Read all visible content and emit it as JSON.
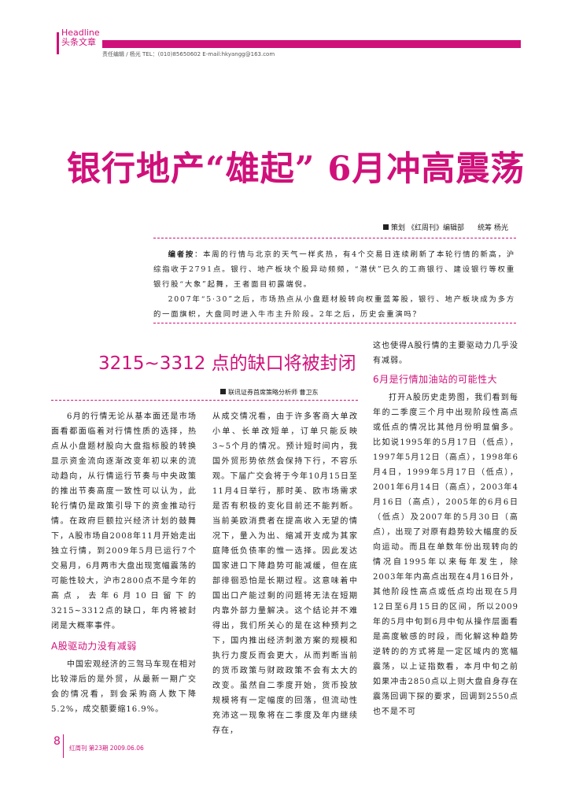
{
  "header": {
    "section_en": "Headline",
    "section_cn": "头条文章",
    "editor_line": "责任编辑 / 杨光 TEL：(010)85650602 E-mail:hkyangg@163.com"
  },
  "article": {
    "title": "银行地产“雄起” 6月冲高震荡",
    "byline_label": "策划",
    "byline_text": "《红周刊》编辑部",
    "byline_roles": "统筹   杨光",
    "note_label": "编者按",
    "note_p1": "：本周的行情与北京的天气一样炙热，有4个交易日连续刷新了本轮行情的新高，沪综指收于2791点。银行、地产板块个股异动频频，“潜伏”已久的工商银行、建设银行等权重银行股“大象”起舞，王者面目初露端倪。",
    "note_p2": "2007年“5·30”之后，市场热点从小盘题材股转向权重蓝筹股，银行、地产板块成为多方的一面旗帜，大盘同时进入牛市主升阶段。2年之后，历史会重演吗？"
  },
  "sub": {
    "title": "3215~3312 点的缺口将被封闭",
    "author": "联讯证券首席策略分析师  曹卫东"
  },
  "col1": {
    "p1": "6月的行情无论从基本面还是市场面看都面临着对行情性质的选择，热点从小盘题材股向大盘指标股的转换显示资金流向逐渐改变年初以来的流动趋向，从行情运行节奏与中央政策的推出节奏高度一致性可以认为，此轮行情仍是政策引导下的资金推动行情。在政府巨额拉兴经济计划的鼓舞下，A股市场自2008年11月开始走出独立行情，到2009年5月已运行7个交易月，6月两市大盘出现宽幅震荡的可能性较大，沪市2800点不是今年的高点，去年6月10日留下的3215~3312点的缺口，年内将被封闭是大概率事件。",
    "h1": "A股驱动力没有减弱",
    "p2": "中国宏观经济的三驾马车现在相对比较滞后的是外贸，从最新一期广交会的情况看，到会采购商人数下降5.2%，成交额要缩16.9%。"
  },
  "col2": {
    "p1": "从成交情况看，由于许多客商大单改小单、长单改短单，订单只能反映3~5个月的情况。预计短时间内，我国外贸形势依然会保持下行，不容乐观。下届广交会将于今年10月15日至11月4日举行，那时美、欧市场需求是否有积极的变化目前还不能判断。当前美欧消费者在提高收入无望的情况下，量入为出、缩减开支成为其家庭降低负债率的惟一选择。因此发达国家进口下降趋势可能减缓，但在底部徘徊恐怕是长期过程。这意味着中国出口产能过剩的问题将无法在短期内靠外部力量解决。这个结论并不难得出，我们所关心的是在这种预判之下，国内推出经济刺激方案的规模和执行力度反而会更大，从而判断当前的货币政策与财政政策不会有太大的改变。虽然自二季度开始，货币投放规模将有一定幅度的回落，但流动性充沛这一现象将在二季度及年内继续存在，"
  },
  "col3": {
    "p1": "这也使得A股行情的主要驱动力几乎没有减弱。",
    "h1": "6月是行情加油站的可能性大",
    "p2": "打开A股历史走势图，我们看到每年的二季度三个月中出现阶段性高点或低点的情况比其他月份明显偏多。比如说1995年的5月17日（低点），1997年5月12日（高点），1998年6月4日，1999年5月17日（低点），2001年6月14日（高点），2003年4月16日（高点），2005年的6月6日（低点）及2007年的5月30日（高点），出现了对原有趋势较大幅度的反向运动。而且在单数年份出现转向的情况自1995年以来每年发生，除2003年年内高点出现在4月16日外，其他阶段性高点或低点均出现在5月12日至6月15日的区间，所以2009年的5月中旬到6月中旬从操作层面看是高度敏感的时段，而化解这种趋势逆转的的方式将是一定区域内的宽幅震荡，以上证指数看，本月中旬之前如果冲击2850点以上则大盘自身存在震荡回调下探的要求，回调到2550点也不是不可"
  },
  "footer": {
    "page": "8",
    "text": "红周刊  第23期  2009.06.06"
  },
  "colors": {
    "accent": "#d0107a"
  }
}
